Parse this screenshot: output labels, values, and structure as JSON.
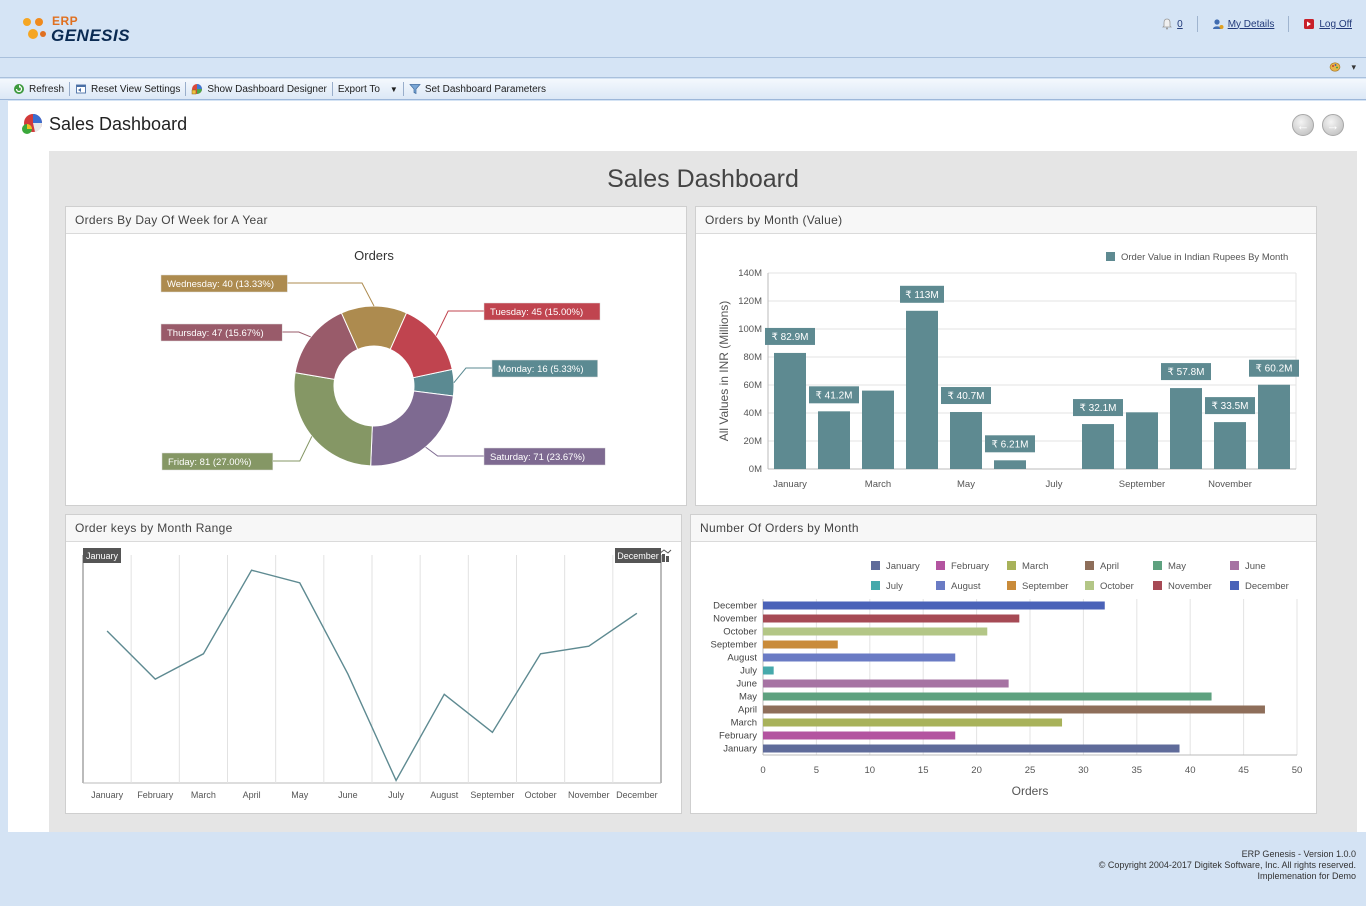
{
  "app": {
    "logo_top": "ERP",
    "logo_main": "GENESIS",
    "notifications_count": "0",
    "my_details": "My Details",
    "log_off": "Log Off"
  },
  "toolbar": {
    "refresh": "Refresh",
    "reset_view": "Reset View Settings",
    "show_designer": "Show Dashboard Designer",
    "export_to": "Export To",
    "set_params": "Set Dashboard Parameters"
  },
  "page": {
    "title": "Sales Dashboard",
    "dashboard_title": "Sales Dashboard"
  },
  "panels": {
    "pie_title": "Orders By Day Of Week for A Year",
    "bar_title": "Orders by Month (Value)",
    "line_title": "Order keys by Month Range",
    "hbar_title": "Number Of Orders by Month"
  },
  "chart_data": [
    {
      "type": "pie",
      "title": "Orders",
      "slices": [
        {
          "label": "Monday",
          "value": 16,
          "percent": "5.33%",
          "color": "#5b8a92"
        },
        {
          "label": "Saturday",
          "value": 71,
          "percent": "23.67%",
          "color": "#7e6a91"
        },
        {
          "label": "Friday",
          "value": 81,
          "percent": "27.00%",
          "color": "#859765"
        },
        {
          "label": "Thursday",
          "value": 47,
          "percent": "15.67%",
          "color": "#995b6a"
        },
        {
          "label": "Wednesday",
          "value": 40,
          "percent": "13.33%",
          "color": "#ad8b4f"
        },
        {
          "label": "Tuesday",
          "value": 45,
          "percent": "15.00%",
          "color": "#c0444f"
        }
      ]
    },
    {
      "type": "bar",
      "legend": "Order Value in Indian Rupees By Month",
      "ylabel": "All Values in INR (Millions)",
      "ylim": [
        0,
        140
      ],
      "yticks": [
        "0M",
        "20M",
        "40M",
        "60M",
        "80M",
        "100M",
        "120M",
        "140M"
      ],
      "categories": [
        "January",
        "February",
        "March",
        "April",
        "May",
        "June",
        "July",
        "August",
        "September",
        "October",
        "November",
        "December"
      ],
      "xticks_shown": [
        "January",
        "March",
        "May",
        "July",
        "September",
        "November"
      ],
      "values": [
        82.9,
        41.2,
        56,
        113,
        40.7,
        6.21,
        0,
        32.1,
        40.5,
        57.8,
        33.5,
        60.2
      ],
      "labels": [
        "₹ 82.9M",
        "₹ 41.2M",
        "",
        "₹ 113M",
        "₹ 40.7M",
        "₹ 6.21M",
        "",
        "₹ 32.1M",
        "",
        "₹ 57.8M",
        "₹ 33.5M",
        "₹ 60.2M"
      ],
      "color": "#5e8a91"
    },
    {
      "type": "line",
      "categories": [
        "January",
        "February",
        "March",
        "April",
        "May",
        "June",
        "July",
        "August",
        "September",
        "October",
        "November",
        "December"
      ],
      "values": [
        40,
        21,
        31,
        64,
        59,
        23,
        -19,
        15,
        0,
        31,
        34,
        47
      ],
      "range_start": "January",
      "range_end": "December",
      "color": "#5e8a91"
    },
    {
      "type": "bar",
      "orientation": "horizontal",
      "xlabel": "Orders",
      "xlim": [
        0,
        50
      ],
      "xticks": [
        0,
        5,
        10,
        15,
        20,
        25,
        30,
        35,
        40,
        45,
        50
      ],
      "categories": [
        "January",
        "February",
        "March",
        "April",
        "May",
        "June",
        "July",
        "August",
        "September",
        "October",
        "November",
        "December"
      ],
      "values": [
        39,
        18,
        28,
        47,
        42,
        23,
        1,
        18,
        7,
        21,
        24,
        32
      ],
      "colors": [
        "#5f6b9a",
        "#b354a0",
        "#a8b25a",
        "#8e6e5a",
        "#5ea17f",
        "#a673a3",
        "#46a9ab",
        "#6a7bc4",
        "#c98b3a",
        "#b3c686",
        "#a64a55",
        "#4a62b8"
      ]
    }
  ],
  "footer": {
    "version": "ERP Genesis - Version 1.0.0",
    "copyright": "© Copyright 2004-2017 Digitek Software, Inc. All rights reserved.",
    "implementation": "Implemenation for Demo"
  }
}
